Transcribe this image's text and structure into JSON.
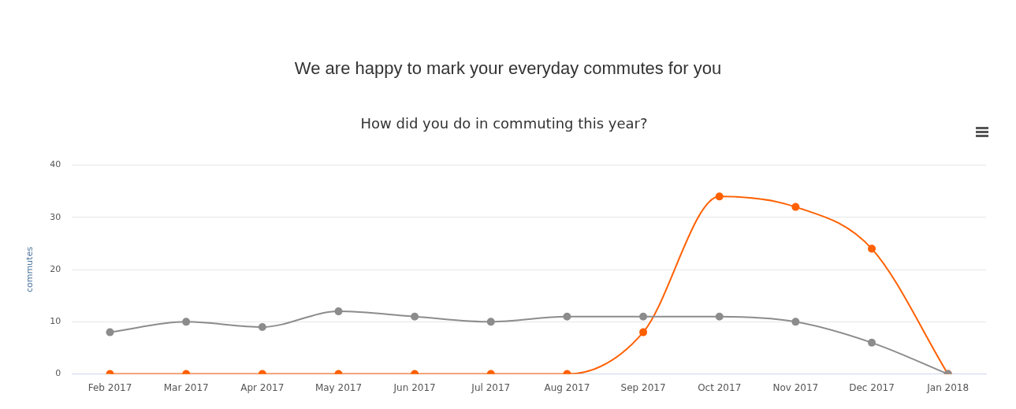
{
  "chart_data": {
    "type": "line",
    "subtitle": "We are happy to mark your everyday commutes for you",
    "title": "How did you do in commuting this year?",
    "ylabel": "commutes",
    "categories": [
      "Feb 2017",
      "Mar 2017",
      "Apr 2017",
      "May 2017",
      "Jun 2017",
      "Jul 2017",
      "Aug 2017",
      "Sep 2017",
      "Oct 2017",
      "Nov 2017",
      "Dec 2017",
      "Jan 2018"
    ],
    "series": [
      {
        "color": "#8c8c8c",
        "values": [
          8,
          10,
          9,
          12,
          11,
          10,
          11,
          11,
          11,
          10,
          6,
          0
        ]
      },
      {
        "color": "#ff6000",
        "values": [
          0,
          0,
          0,
          0,
          0,
          0,
          0,
          8,
          34,
          32,
          24,
          0
        ]
      }
    ],
    "ylim": [
      0,
      40
    ],
    "yticks": [
      0,
      10,
      20,
      30,
      40
    ],
    "grid": "y",
    "legend": false,
    "marker": "circle",
    "line_style": "solid"
  }
}
